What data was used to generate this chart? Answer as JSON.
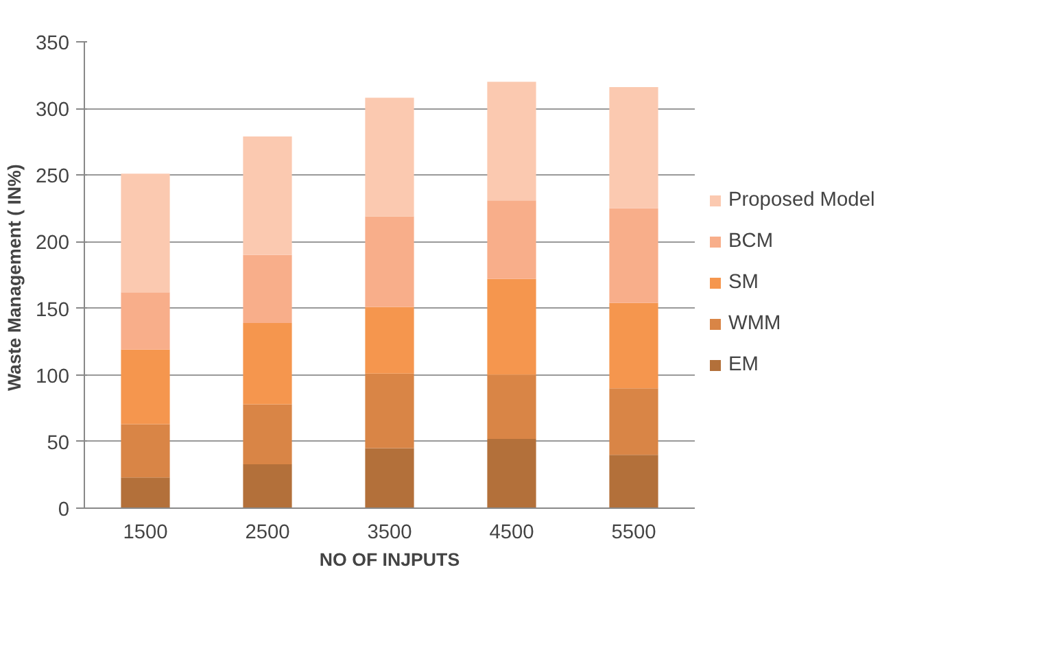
{
  "chart_data": {
    "type": "bar",
    "stacked": true,
    "xlabel": "NO OF INJPUTS",
    "ylabel": "Waste Management  ( IN%)",
    "categories": [
      "1500",
      "2500",
      "3500",
      "4500",
      "5500"
    ],
    "series": [
      {
        "name": "EM",
        "color": "#b3703a",
        "values": [
          23,
          33,
          45,
          52,
          40
        ]
      },
      {
        "name": "WMM",
        "color": "#d98546",
        "values": [
          40,
          45,
          56,
          48,
          50
        ]
      },
      {
        "name": "SM",
        "color": "#f5964e",
        "values": [
          56,
          61,
          50,
          72,
          64
        ]
      },
      {
        "name": "BCM",
        "color": "#f8ae8a",
        "values": [
          43,
          51,
          68,
          59,
          71
        ]
      },
      {
        "name": "Proposed Model",
        "color": "#fbc9b0",
        "values": [
          89,
          89,
          89,
          89,
          91
        ]
      }
    ],
    "ylim": [
      0,
      350
    ],
    "yticks": [
      0,
      50,
      100,
      150,
      200,
      250,
      300,
      350
    ],
    "grid": "y",
    "legend": "right"
  }
}
